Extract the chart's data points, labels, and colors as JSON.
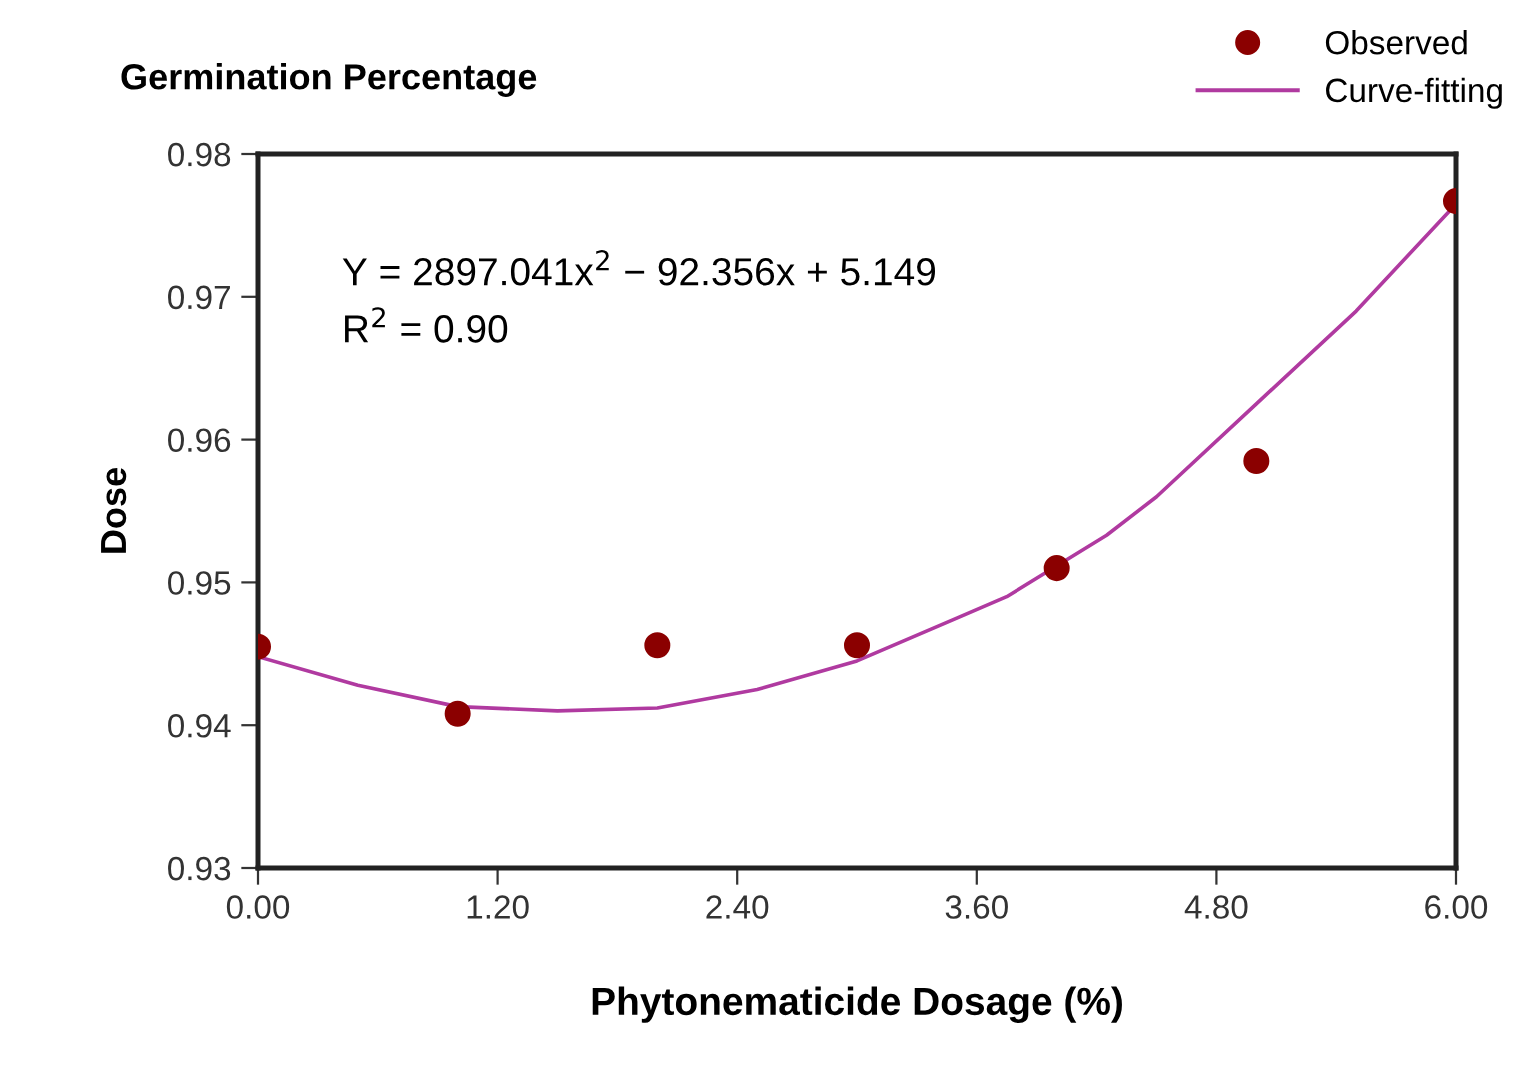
{
  "chart_data": {
    "type": "scatter",
    "title": "Germination Percentage",
    "xlabel": "Phytonematicide Dosage (%)",
    "ylabel": "Dose",
    "annotations": [
      "Y = 2897.041x$^{2}$ − 92.356x + 5.149",
      "R$^{2}$ = 0.90"
    ],
    "series": [
      {
        "name": "Observed",
        "color": "#8b0000",
        "marker": "circle",
        "x": [
          0,
          1,
          2,
          3,
          4,
          5,
          6
        ],
        "values": [
          0.9455,
          0.9408,
          0.9456,
          0.9456,
          0.951,
          0.9585,
          0.9767
        ]
      },
      {
        "name": "Curve-fitting",
        "type": "line",
        "color": "#b03aa0",
        "marker": "none",
        "line_style": "solid",
        "x": [
          0,
          0.5,
          1,
          1.5,
          2,
          2.5,
          3,
          3.5,
          3.75,
          4.25,
          4.5,
          5,
          5.5,
          6
        ],
        "values": [
          0.9448,
          0.9428,
          0.9413,
          0.941,
          0.9412,
          0.9425,
          0.9445,
          0.9475,
          0.949,
          0.9533,
          0.956,
          0.9625,
          0.969,
          0.9765
        ]
      }
    ],
    "xlim": [
      0,
      6
    ],
    "xticks": [
      {
        "value": 0,
        "label": "0.00"
      },
      {
        "value": 1.2,
        "label": "1.20"
      },
      {
        "value": 2.4,
        "label": "2.40"
      },
      {
        "value": 3.6,
        "label": "3.60"
      },
      {
        "value": 4.8,
        "label": "4.80"
      },
      {
        "value": 6,
        "label": "6.00"
      }
    ],
    "ylim": [
      0.93,
      0.98
    ],
    "yticks": [
      {
        "value": 0.93,
        "label": "0.93"
      },
      {
        "value": 0.94,
        "label": "0.94"
      },
      {
        "value": 0.95,
        "label": "0.95"
      },
      {
        "value": 0.96,
        "label": "0.96"
      },
      {
        "value": 0.97,
        "label": "0.97"
      },
      {
        "value": 0.98,
        "label": "0.98"
      }
    ],
    "legend": "top right",
    "grid": false
  }
}
